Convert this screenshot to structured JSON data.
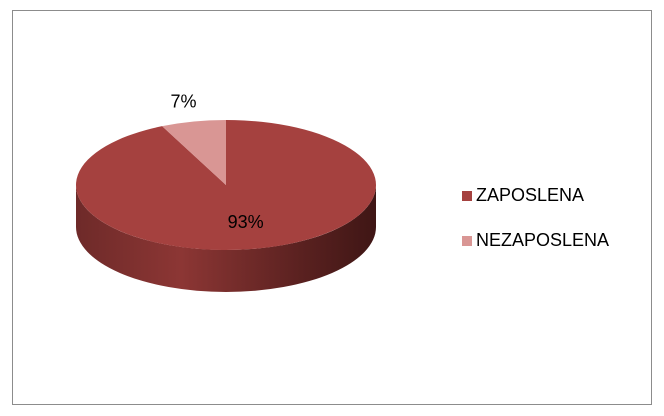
{
  "chart_data": {
    "type": "pie",
    "categories": [
      "ZAPOSLENA",
      "NEZAPOSLENA"
    ],
    "values": [
      93,
      7
    ],
    "value_labels": [
      "93%",
      "7%"
    ],
    "colors": [
      "#a5413f",
      "#d99694"
    ],
    "legend": "right"
  }
}
